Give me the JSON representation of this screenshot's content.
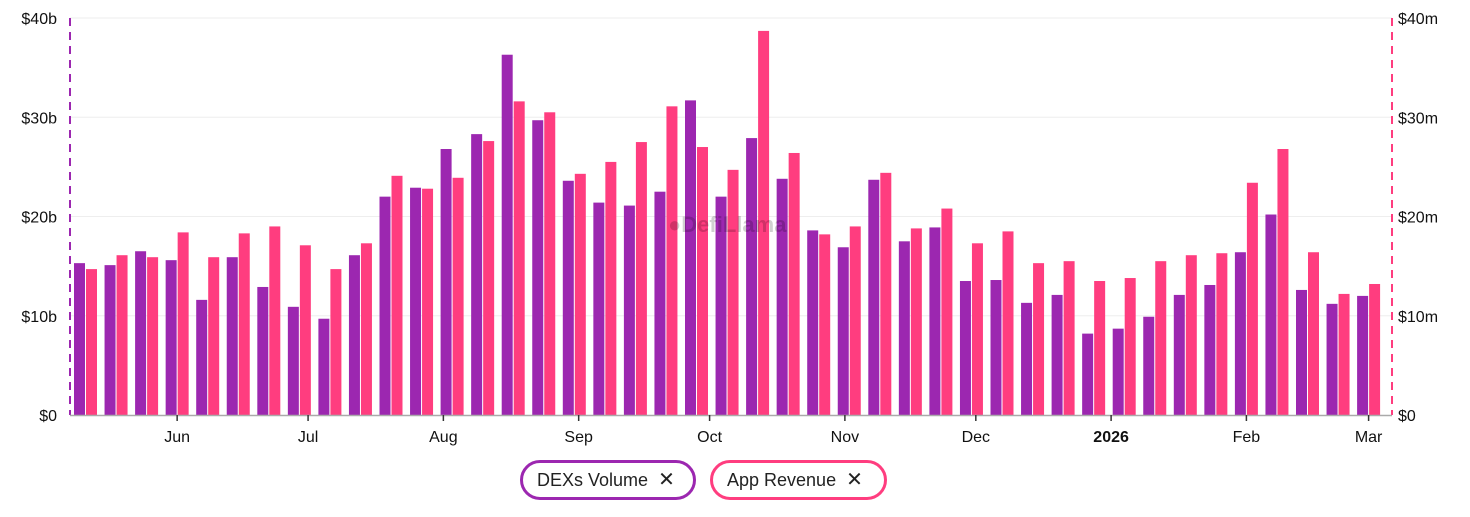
{
  "chart_data": {
    "type": "bar",
    "categories": [
      "2025-05-11",
      "2025-05-18",
      "2025-05-25",
      "2025-06-01",
      "2025-06-08",
      "2025-06-15",
      "2025-06-22",
      "2025-06-29",
      "2025-07-06",
      "2025-07-13",
      "2025-07-20",
      "2025-07-27",
      "2025-08-03",
      "2025-08-10",
      "2025-08-17",
      "2025-08-24",
      "2025-08-31",
      "2025-09-07",
      "2025-09-14",
      "2025-09-21",
      "2025-09-28",
      "2025-10-05",
      "2025-10-12",
      "2025-10-19",
      "2025-10-26",
      "2025-11-02",
      "2025-11-09",
      "2025-11-16",
      "2025-11-23",
      "2025-11-30",
      "2025-12-07",
      "2025-12-14",
      "2025-12-21",
      "2025-12-28",
      "2026-01-04",
      "2026-01-11",
      "2026-01-18",
      "2026-01-25",
      "2026-02-01",
      "2026-02-08",
      "2026-02-15",
      "2026-02-22",
      "2026-03-01"
    ],
    "series": [
      {
        "name": "DEXs Volume",
        "axis": "left",
        "unit": "billion USD",
        "color": "#9C27B0",
        "values": [
          15.3,
          15.1,
          16.5,
          15.6,
          11.6,
          15.9,
          12.9,
          10.9,
          9.7,
          16.1,
          22.0,
          22.9,
          26.8,
          28.3,
          36.3,
          29.7,
          23.6,
          21.4,
          21.1,
          22.5,
          31.7,
          22.0,
          27.9,
          23.8,
          18.6,
          16.9,
          23.7,
          17.5,
          18.9,
          13.5,
          13.6,
          11.3,
          12.1,
          8.2,
          8.7,
          9.9,
          12.1,
          13.1,
          16.4,
          20.2,
          12.6,
          11.2,
          12.0
        ]
      },
      {
        "name": "App Revenue",
        "axis": "right",
        "unit": "million USD",
        "color": "#FF3D7F",
        "values": [
          14.7,
          16.1,
          15.9,
          18.4,
          15.9,
          18.3,
          19.0,
          17.1,
          14.7,
          17.3,
          24.1,
          22.8,
          23.9,
          27.6,
          31.6,
          30.5,
          24.3,
          25.5,
          27.5,
          31.1,
          27.0,
          24.7,
          38.7,
          26.4,
          18.2,
          19.0,
          24.4,
          18.8,
          20.8,
          17.3,
          18.5,
          15.3,
          15.5,
          13.5,
          13.8,
          15.5,
          16.1,
          16.3,
          23.4,
          26.8,
          16.4,
          12.2,
          13.2
        ]
      }
    ],
    "x_tick_labels": [
      "Jun",
      "Jul",
      "Aug",
      "Sep",
      "Oct",
      "Nov",
      "Dec",
      "2026",
      "Feb",
      "Mar"
    ],
    "x_tick_dates": [
      "2025-06-01",
      "2025-07-01",
      "2025-08-01",
      "2025-09-01",
      "2025-10-01",
      "2025-11-01",
      "2025-12-01",
      "2026-01-01",
      "2026-02-01",
      "2026-03-01"
    ],
    "x_tick_bold": [
      "2026"
    ],
    "y_left": {
      "ticks": [
        "$0",
        "$10b",
        "$20b",
        "$30b",
        "$40b"
      ],
      "range": [
        0,
        40
      ]
    },
    "y_right": {
      "ticks": [
        "$0",
        "$10m",
        "$20m",
        "$30m",
        "$40m"
      ],
      "range": [
        0,
        40
      ]
    },
    "grid": true,
    "legend_placement": "bottom-center"
  },
  "legend": [
    {
      "label": "DEXs Volume",
      "close": "✕",
      "color": "#9C27B0"
    },
    {
      "label": "App Revenue",
      "close": "✕",
      "color": "#FF3D7F"
    }
  ],
  "watermark": "DefiLlama"
}
